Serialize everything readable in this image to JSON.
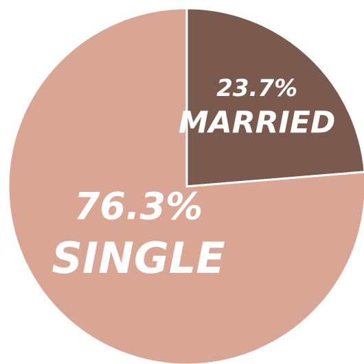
{
  "chart_data": {
    "type": "pie",
    "categories": [
      "MARRIED",
      "SINGLE"
    ],
    "values": [
      23.7,
      76.3
    ],
    "value_labels": [
      "23.7%",
      "76.3%"
    ],
    "colors": [
      "#7a5a4f",
      "#d9a594"
    ]
  }
}
